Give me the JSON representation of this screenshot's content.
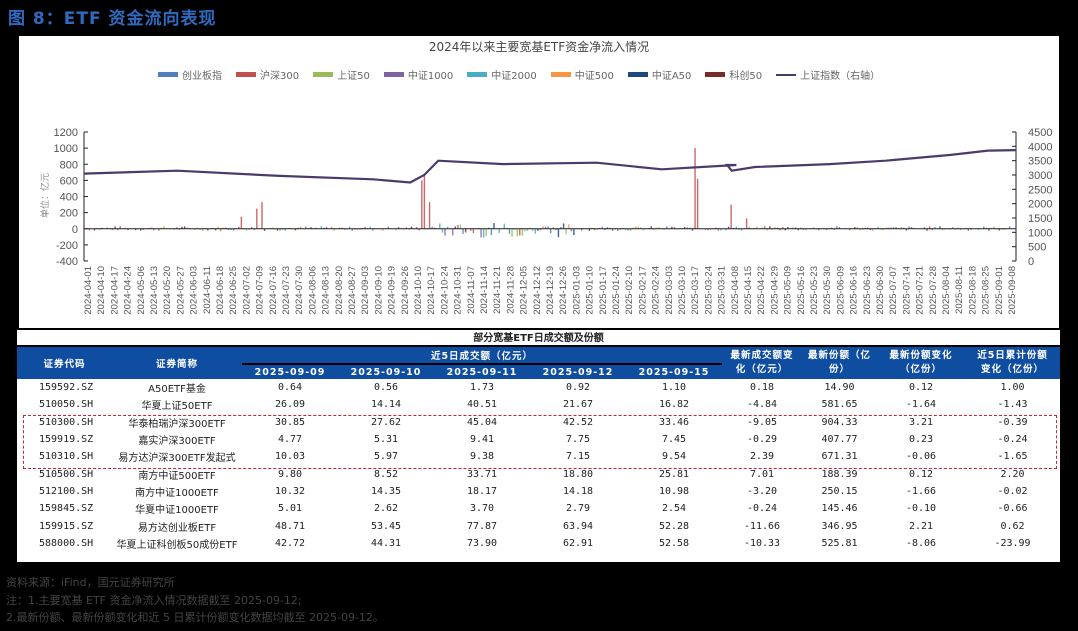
{
  "figure": {
    "title": "图 8：ETF 资金流向表现"
  },
  "chart_data": {
    "type": "bar",
    "title": "2024年以来主要宽基ETF资金净流入情况",
    "ylabel": "单位：亿元",
    "ylabel_right": "上证指数（右轴）",
    "ylim": [
      -400,
      1200
    ],
    "ylim_right": [
      0,
      4500
    ],
    "yticks_left": [
      1200,
      1000,
      800,
      600,
      400,
      200,
      0,
      -200,
      -400
    ],
    "yticks_right": [
      4500,
      4000,
      3500,
      3000,
      2500,
      2000,
      1500,
      1000,
      500,
      0
    ],
    "legend_position": "top",
    "grid": false,
    "legend": [
      {
        "name": "创业板指",
        "color": "#4f81bd",
        "kind": "bar"
      },
      {
        "name": "沪深300",
        "color": "#c0504d",
        "kind": "bar"
      },
      {
        "name": "上证50",
        "color": "#9bbb59",
        "kind": "bar"
      },
      {
        "name": "中证1000",
        "color": "#8064a2",
        "kind": "bar"
      },
      {
        "name": "中证2000",
        "color": "#4bacc6",
        "kind": "bar"
      },
      {
        "name": "中证500",
        "color": "#f79646",
        "kind": "bar"
      },
      {
        "name": "中证A50",
        "color": "#1f497d",
        "kind": "bar"
      },
      {
        "name": "科创50",
        "color": "#772c2a",
        "kind": "bar"
      },
      {
        "name": "上证指数（右轴）",
        "color": "#4b3b6b",
        "kind": "line"
      }
    ],
    "x_tick_labels": [
      "2024-04-01",
      "2024-04-10",
      "2024-04-17",
      "2024-04-24",
      "2024-05-06",
      "2024-05-13",
      "2024-05-20",
      "2024-05-27",
      "2024-06-03",
      "2024-06-11",
      "2024-06-18",
      "2024-06-25",
      "2024-07-02",
      "2024-07-09",
      "2024-07-16",
      "2024-07-23",
      "2024-07-30",
      "2024-08-06",
      "2024-08-13",
      "2024-08-20",
      "2024-08-27",
      "2024-09-03",
      "2024-09-10",
      "2024-09-19",
      "2024-09-26",
      "2024-10-10",
      "2024-10-17",
      "2024-10-24",
      "2024-10-31",
      "2024-11-07",
      "2024-11-14",
      "2024-11-21",
      "2024-11-28",
      "2024-12-05",
      "2024-12-12",
      "2024-12-19",
      "2024-12-26",
      "2025-01-03",
      "2025-01-10",
      "2025-01-17",
      "2025-01-24",
      "2025-02-10",
      "2025-02-17",
      "2025-02-24",
      "2025-03-03",
      "2025-03-10",
      "2025-03-17",
      "2025-03-24",
      "2025-03-31",
      "2025-04-08",
      "2025-04-15",
      "2025-04-22",
      "2025-04-29",
      "2025-05-09",
      "2025-05-16",
      "2025-05-23",
      "2025-05-30",
      "2025-06-09",
      "2025-06-16",
      "2025-06-23",
      "2025-06-30",
      "2025-07-07",
      "2025-07-14",
      "2025-07-21",
      "2025-07-28",
      "2025-08-04",
      "2025-08-11",
      "2025-08-18",
      "2025-08-25",
      "2025-09-01",
      "2025-09-08"
    ],
    "series_index_line": {
      "name": "上证指数（右轴）",
      "x": [
        "2024-04-01",
        "2024-05-20",
        "2024-07-09",
        "2024-08-27",
        "2024-09-19",
        "2024-09-26",
        "2024-10-10",
        "2024-11-07",
        "2024-12-12",
        "2025-01-10",
        "2025-02-24",
        "2025-03-31",
        "2025-04-08",
        "2025-04-22",
        "2025-06-09",
        "2025-07-14",
        "2025-08-18",
        "2025-09-01",
        "2025-09-12"
      ],
      "values": [
        3050,
        3150,
        2970,
        2850,
        2740,
        3000,
        3500,
        3380,
        3430,
        3200,
        3350,
        3350,
        3150,
        3280,
        3380,
        3500,
        3700,
        3850,
        3870
      ]
    },
    "net_inflow_notable": {
      "x": [
        "2024-07-09",
        "2024-09-26",
        "2024-09-30",
        "2024-10-08",
        "2025-04-07",
        "2025-04-08",
        "2025-04-17"
      ],
      "values": [
        270,
        600,
        680,
        330,
        1000,
        620,
        300
      ]
    }
  },
  "table": {
    "caption": "部分宽基ETF日成交额及份额",
    "headers": {
      "code": "证券代码",
      "name": "证券简称",
      "volume_group": "近5日成交额（亿元）",
      "dates": [
        "2025-09-09",
        "2025-09-10",
        "2025-09-11",
        "2025-09-12",
        "2025-09-15"
      ],
      "vol_change": "最新成交额变化（亿元）",
      "shares": "最新份额（亿份）",
      "share_change": "最新份额变化（亿份）",
      "share_change_5d": "近5日累计份额变化（亿份）"
    },
    "rows": [
      {
        "code": "159592.SZ",
        "name": "A50ETF基金",
        "d1": "0.64",
        "d2": "0.56",
        "d3": "1.73",
        "d4": "0.92",
        "d5": "1.10",
        "vol_change": "0.18",
        "shares": "14.90",
        "share_change": "0.12",
        "share_change_5d": "1.00"
      },
      {
        "code": "510050.SH",
        "name": "华夏上证50ETF",
        "d1": "26.09",
        "d2": "14.14",
        "d3": "40.51",
        "d4": "21.67",
        "d5": "16.82",
        "vol_change": "-4.84",
        "shares": "581.65",
        "share_change": "-1.64",
        "share_change_5d": "-1.43"
      },
      {
        "code": "510300.SH",
        "name": "华泰柏瑞沪深300ETF",
        "d1": "30.85",
        "d2": "27.62",
        "d3": "45.04",
        "d4": "42.52",
        "d5": "33.46",
        "vol_change": "-9.05",
        "shares": "904.33",
        "share_change": "3.21",
        "share_change_5d": "-0.39"
      },
      {
        "code": "159919.SZ",
        "name": "嘉实沪深300ETF",
        "d1": "4.77",
        "d2": "5.31",
        "d3": "9.41",
        "d4": "7.75",
        "d5": "7.45",
        "vol_change": "-0.29",
        "shares": "407.77",
        "share_change": "0.23",
        "share_change_5d": "-0.24"
      },
      {
        "code": "510310.SH",
        "name": "易方达沪深300ETF发起式",
        "d1": "10.03",
        "d2": "5.97",
        "d3": "9.38",
        "d4": "7.15",
        "d5": "9.54",
        "vol_change": "2.39",
        "shares": "671.31",
        "share_change": "-0.06",
        "share_change_5d": "-1.65"
      },
      {
        "code": "510500.SH",
        "name": "南方中证500ETF",
        "d1": "9.80",
        "d2": "8.52",
        "d3": "33.71",
        "d4": "18.80",
        "d5": "25.81",
        "vol_change": "7.01",
        "shares": "188.39",
        "share_change": "0.12",
        "share_change_5d": "2.20"
      },
      {
        "code": "512100.SH",
        "name": "南方中证1000ETF",
        "d1": "10.32",
        "d2": "14.35",
        "d3": "18.17",
        "d4": "14.18",
        "d5": "10.98",
        "vol_change": "-3.20",
        "shares": "250.15",
        "share_change": "-1.66",
        "share_change_5d": "-0.02"
      },
      {
        "code": "159845.SZ",
        "name": "华夏中证1000ETF",
        "d1": "5.01",
        "d2": "2.62",
        "d3": "3.70",
        "d4": "2.79",
        "d5": "2.54",
        "vol_change": "-0.24",
        "shares": "145.46",
        "share_change": "-0.10",
        "share_change_5d": "-0.66"
      },
      {
        "code": "159915.SZ",
        "name": "易方达创业板ETF",
        "d1": "48.71",
        "d2": "53.45",
        "d3": "77.87",
        "d4": "63.94",
        "d5": "52.28",
        "vol_change": "-11.66",
        "shares": "346.95",
        "share_change": "2.21",
        "share_change_5d": "0.62"
      },
      {
        "code": "588000.SH",
        "name": "华夏上证科创板50成份ETF",
        "d1": "42.72",
        "d2": "44.31",
        "d3": "73.90",
        "d4": "62.91",
        "d5": "52.58",
        "vol_change": "-10.33",
        "shares": "525.81",
        "share_change": "-8.06",
        "share_change_5d": "-23.99"
      }
    ],
    "highlight_color": "#d0202a"
  },
  "footer": {
    "source": "资料来源：iFind，国元证券研究所",
    "note1": "注：1.主要宽基 ETF 资金净流入情况数据截至 2025-09-12;",
    "note2": "2.最新份额、最新份额变化和近 5 日累计份额变化数据均截至 2025-09-12。"
  }
}
